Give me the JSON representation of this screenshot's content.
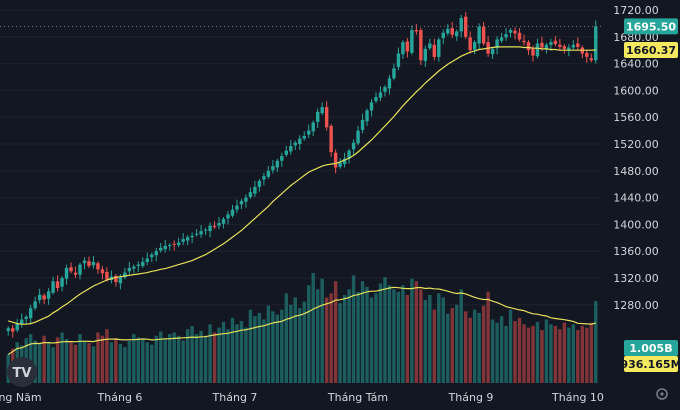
{
  "chart_data": {
    "type": "candlestick",
    "y_axis": {
      "min": 1220,
      "max": 1720,
      "ticks": [
        1720,
        1680,
        1640,
        1600,
        1560,
        1520,
        1480,
        1440,
        1400,
        1360,
        1320,
        1280
      ]
    },
    "x_axis": {
      "labels": [
        "ng Năm",
        "Tháng 6",
        "Tháng 7",
        "Tháng Tám",
        "Tháng 9",
        "Tháng 10"
      ]
    },
    "price_badges": [
      {
        "value": "1695.50",
        "color": "#26a69a",
        "text_color": "#ffffff"
      },
      {
        "value": "1660.37",
        "color": "#f5e960",
        "text_color": "#131722"
      }
    ],
    "volume_badges": [
      {
        "value": "1.005B",
        "color": "#26a69a",
        "text_color": "#ffffff"
      },
      {
        "value": "936.165M",
        "color": "#f5e960",
        "text_color": "#131722"
      }
    ],
    "colors": {
      "up": "#26a69a",
      "down": "#ef5350",
      "ma": "#e6e05a",
      "background": "#131722"
    },
    "price_path": [
      1245,
      1240,
      1252,
      1258,
      1262,
      1275,
      1285,
      1295,
      1288,
      1300,
      1315,
      1305,
      1320,
      1335,
      1330,
      1325,
      1340,
      1346,
      1338,
      1344,
      1333,
      1327,
      1318,
      1322,
      1314,
      1321,
      1328,
      1335,
      1337,
      1340,
      1344,
      1349,
      1355,
      1360,
      1365,
      1368,
      1369,
      1370,
      1373,
      1378,
      1381,
      1383,
      1386,
      1390,
      1392,
      1398,
      1396,
      1402,
      1408,
      1415,
      1422,
      1428,
      1435,
      1440,
      1448,
      1456,
      1465,
      1472,
      1480,
      1487,
      1495,
      1502,
      1510,
      1517,
      1522,
      1528,
      1532,
      1540,
      1552,
      1568,
      1575,
      1545,
      1508,
      1485,
      1492,
      1498,
      1510,
      1522,
      1540,
      1556,
      1570,
      1582,
      1590,
      1597,
      1605,
      1618,
      1633,
      1655,
      1672,
      1658,
      1690,
      1688,
      1645,
      1662,
      1670,
      1650,
      1676,
      1686,
      1692,
      1683,
      1688,
      1708,
      1680,
      1660,
      1672,
      1695,
      1670,
      1655,
      1662,
      1676,
      1679,
      1684,
      1690,
      1685,
      1676,
      1672,
      1660,
      1652,
      1670,
      1664,
      1668,
      1672,
      1669,
      1665,
      1662,
      1664,
      1668,
      1665,
      1655,
      1650,
      1645,
      1695.5
    ],
    "ma_path": [
      1256,
      1254,
      1252,
      1251,
      1251,
      1252,
      1254,
      1257,
      1260,
      1263,
      1268,
      1272,
      1277,
      1281,
      1286,
      1291,
      1296,
      1300,
      1304,
      1308,
      1311,
      1314,
      1317,
      1319,
      1321,
      1322,
      1323,
      1324,
      1325,
      1326,
      1327,
      1328,
      1330,
      1331,
      1333,
      1334,
      1336,
      1338,
      1340,
      1342,
      1344,
      1346,
      1349,
      1352,
      1355,
      1359,
      1363,
      1367,
      1371,
      1376,
      1381,
      1386,
      1391,
      1397,
      1403,
      1409,
      1415,
      1421,
      1427,
      1434,
      1440,
      1446,
      1452,
      1458,
      1463,
      1468,
      1473,
      1478,
      1481,
      1484,
      1487,
      1489,
      1490,
      1491,
      1493,
      1496,
      1499,
      1503,
      1508,
      1514,
      1520,
      1526,
      1533,
      1540,
      1547,
      1554,
      1561,
      1569,
      1577,
      1584,
      1591,
      1598,
      1604,
      1611,
      1617,
      1623,
      1629,
      1634,
      1639,
      1643,
      1647,
      1651,
      1654,
      1657,
      1659,
      1661,
      1662,
      1663,
      1664,
      1665,
      1665,
      1665,
      1665,
      1665,
      1665,
      1664,
      1664,
      1663,
      1663,
      1662,
      1662,
      1661,
      1661,
      1660,
      1660,
      1660,
      1660,
      1660,
      1660,
      1660,
      1660,
      1660.37
    ],
    "volume_path": [
      0.35,
      0.42,
      0.5,
      0.46,
      0.55,
      0.6,
      0.52,
      0.48,
      0.58,
      0.5,
      0.44,
      0.56,
      0.62,
      0.54,
      0.5,
      0.47,
      0.6,
      0.52,
      0.49,
      0.45,
      0.62,
      0.58,
      0.66,
      0.5,
      0.55,
      0.48,
      0.44,
      0.52,
      0.6,
      0.56,
      0.54,
      0.5,
      0.47,
      0.58,
      0.63,
      0.55,
      0.6,
      0.62,
      0.58,
      0.52,
      0.66,
      0.7,
      0.6,
      0.64,
      0.58,
      0.72,
      0.62,
      0.68,
      0.75,
      0.66,
      0.8,
      0.72,
      0.76,
      0.68,
      0.9,
      0.82,
      0.86,
      0.78,
      0.95,
      0.88,
      0.84,
      0.9,
      1.1,
      0.96,
      1.05,
      0.92,
      1.0,
      1.2,
      1.35,
      1.15,
      1.28,
      1.05,
      1.1,
      1.25,
      0.98,
      1.08,
      1.15,
      1.32,
      1.12,
      1.25,
      1.18,
      1.05,
      1.1,
      1.22,
      1.3,
      1.2,
      1.15,
      1.12,
      1.2,
      1.08,
      1.28,
      1.25,
      1.15,
      1.02,
      1.08,
      0.9,
      1.1,
      1.05,
      0.85,
      0.92,
      0.96,
      1.15,
      0.88,
      0.8,
      0.9,
      0.86,
      0.95,
      1.12,
      0.78,
      0.74,
      0.82,
      0.7,
      0.9,
      0.76,
      0.8,
      0.72,
      0.68,
      0.7,
      0.75,
      0.65,
      0.78,
      0.72,
      0.7,
      0.66,
      0.74,
      0.68,
      0.72,
      0.65,
      0.7,
      0.68,
      0.74,
      1.005
    ]
  }
}
